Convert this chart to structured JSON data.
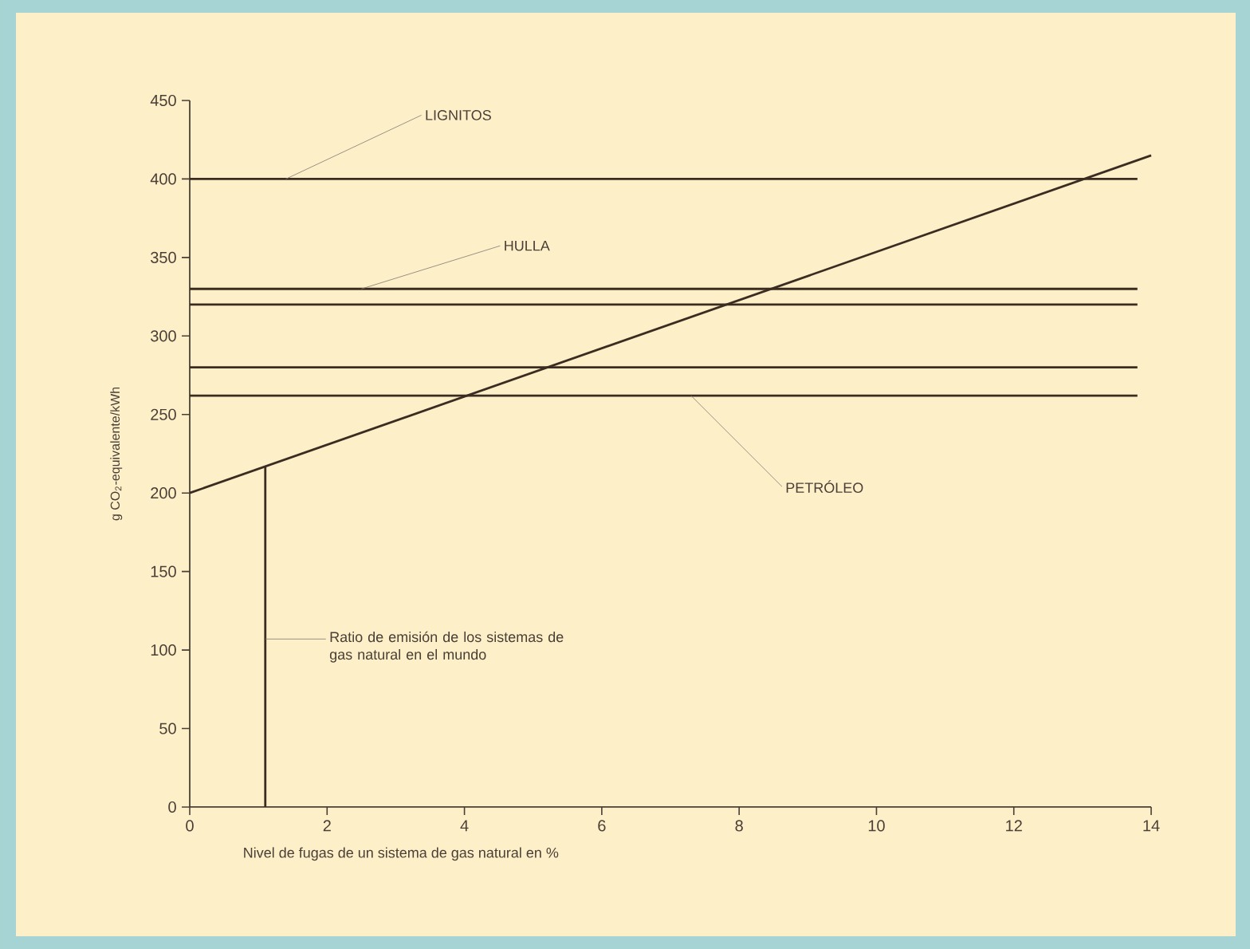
{
  "chart_data": {
    "type": "line",
    "xlabel": "Nivel de fugas de un sistema de gas natural en %",
    "ylabel": "g CO$_{2}$-equivalente/kWh",
    "xlim": [
      0,
      14
    ],
    "ylim": [
      0,
      450
    ],
    "xticks": [
      0,
      2,
      4,
      6,
      8,
      10,
      12,
      14
    ],
    "yticks": [
      0,
      50,
      100,
      150,
      200,
      250,
      300,
      350,
      400,
      450
    ],
    "series": [
      {
        "color": "#3b2c22",
        "x": [
          0,
          14
        ],
        "values": [
          200,
          415
        ]
      },
      {
        "color": "#3b2c22",
        "x": [
          0,
          13.8
        ],
        "values": [
          400,
          400
        ]
      },
      {
        "color": "#3b2c22",
        "x": [
          0,
          13.8
        ],
        "values": [
          330,
          330
        ]
      },
      {
        "color": "#3b2c22",
        "x": [
          0,
          13.8
        ],
        "values": [
          320,
          320
        ]
      },
      {
        "color": "#3b2c22",
        "x": [
          0,
          13.8
        ],
        "values": [
          280,
          280
        ]
      },
      {
        "color": "#3b2c22",
        "x": [
          0,
          13.8
        ],
        "values": [
          262,
          262
        ]
      },
      {
        "color": "#3b2c22",
        "x": [
          1.1,
          1.1
        ],
        "values": [
          0,
          217
        ]
      }
    ],
    "annotations": [
      {
        "text": "LIGNITOS",
        "x": 1.4,
        "y": 400
      },
      {
        "text": "HULLA",
        "x": 2.5,
        "y": 330
      },
      {
        "text": "PETRÓLEO",
        "x": 7.3,
        "y": 262
      },
      {
        "text": "Ratio de emisión de los sistemas de gas natural en el mundo",
        "x": 1.1,
        "y": 107
      }
    ]
  }
}
